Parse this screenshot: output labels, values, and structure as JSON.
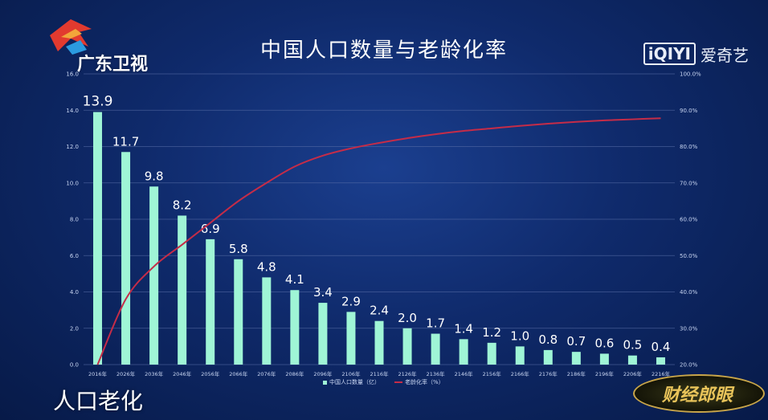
{
  "header": {
    "title": "中国人口数量与老龄化率",
    "left_logo_text": "广东卫视",
    "right_logo_box": "iQIYI",
    "right_logo_text": "爱奇艺"
  },
  "footer": {
    "caption": "人口老化",
    "badge_text": "财经郎眼"
  },
  "colors": {
    "bar": "#9ff5d6",
    "line": "#c52c48",
    "grid": "#5a6fa8",
    "text": "#ffffff",
    "axis_text": "#c9d6f2"
  },
  "chart_data": {
    "type": "bar",
    "title": "中国人口数量与老龄化率",
    "categories": [
      "2016年",
      "2026年",
      "2036年",
      "2046年",
      "2056年",
      "2066年",
      "2076年",
      "2086年",
      "2096年",
      "2106年",
      "2116年",
      "2126年",
      "2136年",
      "2146年",
      "2156年",
      "2166年",
      "2176年",
      "2186年",
      "2196年",
      "2206年",
      "2216年"
    ],
    "series": [
      {
        "name": "中国人口数量（亿）",
        "type": "bar",
        "axis": "left",
        "values": [
          13.9,
          11.7,
          9.8,
          8.2,
          6.9,
          5.8,
          4.8,
          4.1,
          3.4,
          2.9,
          2.4,
          2.0,
          1.7,
          1.4,
          1.2,
          1.0,
          0.8,
          0.7,
          0.6,
          0.5,
          0.4
        ],
        "data_labels": [
          "13.9",
          "11.7",
          "9.8",
          "8.2",
          "6.9",
          "5.8",
          "4.8",
          "4.1",
          "3.4",
          "2.9",
          "2.4",
          "2.0",
          "1.7",
          "1.4",
          "1.2",
          "1.0",
          "0.8",
          "0.7",
          "0.6",
          "0.5",
          "0.4"
        ]
      },
      {
        "name": "老龄化率（%）",
        "type": "line",
        "axis": "right",
        "values": [
          20.0,
          38.0,
          47.0,
          53.0,
          59.0,
          65.0,
          70.0,
          74.5,
          77.5,
          79.5,
          81.0,
          82.3,
          83.4,
          84.3,
          85.0,
          85.7,
          86.3,
          86.8,
          87.2,
          87.5,
          87.8
        ]
      }
    ],
    "y_left": {
      "range": [
        0,
        16
      ],
      "ticks": [
        "0.0",
        "2.0",
        "4.0",
        "6.0",
        "8.0",
        "10.0",
        "12.0",
        "14.0",
        "16.0"
      ]
    },
    "y_right": {
      "range": [
        20,
        100
      ],
      "ticks": [
        "20.0%",
        "30.0%",
        "40.0%",
        "50.0%",
        "60.0%",
        "70.0%",
        "80.0%",
        "90.0%",
        "100.0%"
      ]
    },
    "grid": true,
    "legend": "bottom",
    "legend_labels": [
      "中国人口数量（亿）",
      "老龄化率（%）"
    ]
  }
}
